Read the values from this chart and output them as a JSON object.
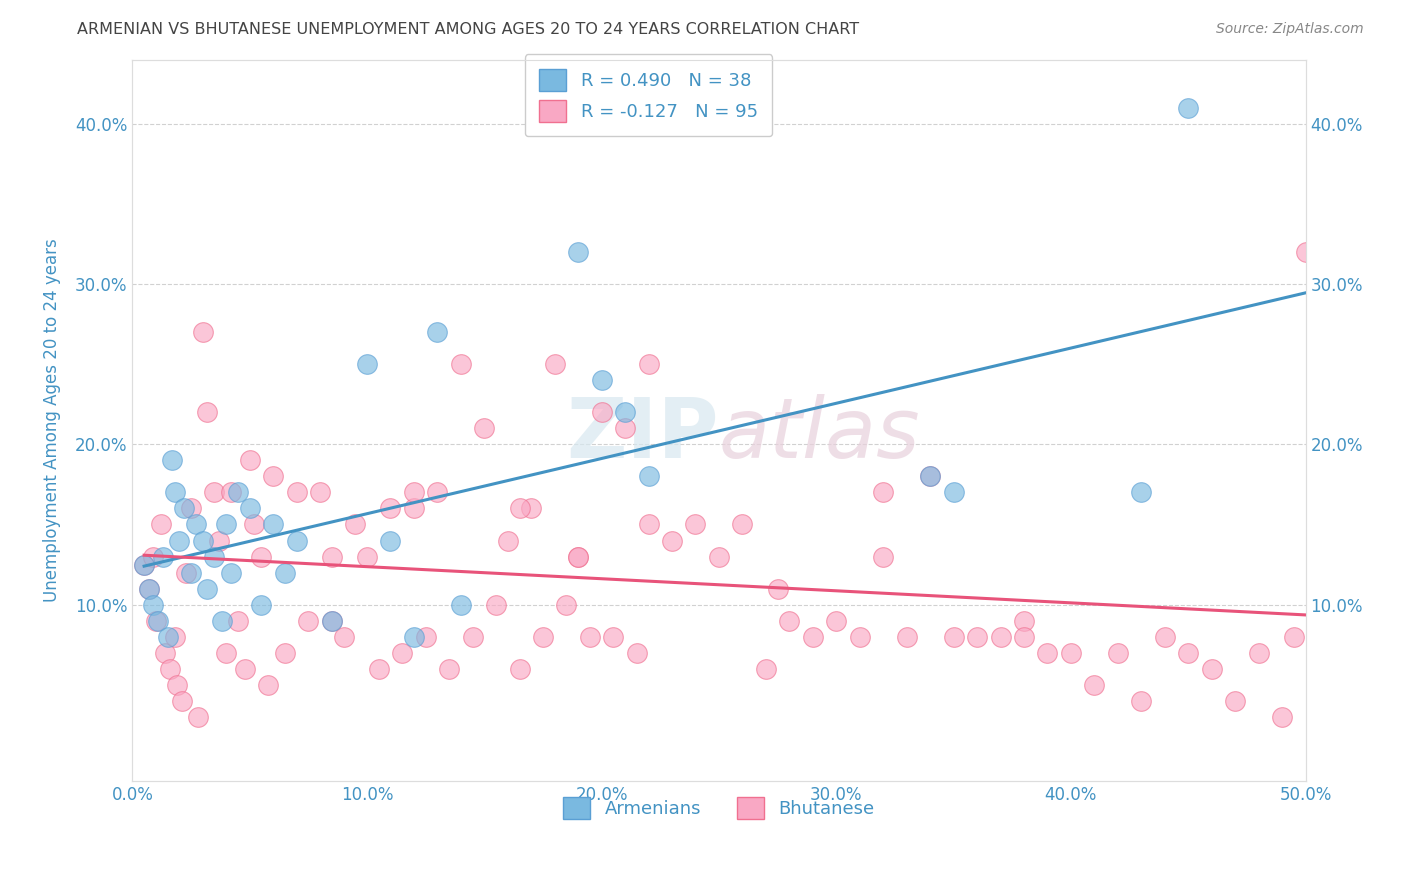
{
  "title": "ARMENIAN VS BHUTANESE UNEMPLOYMENT AMONG AGES 20 TO 24 YEARS CORRELATION CHART",
  "source": "Source: ZipAtlas.com",
  "ylabel": "Unemployment Among Ages 20 to 24 years",
  "xlim": [
    0.0,
    0.5
  ],
  "ylim": [
    -0.01,
    0.44
  ],
  "xticks": [
    0.0,
    0.1,
    0.2,
    0.3,
    0.4,
    0.5
  ],
  "yticks": [
    0.1,
    0.2,
    0.3,
    0.4
  ],
  "xticklabels": [
    "0.0%",
    "10.0%",
    "20.0%",
    "30.0%",
    "40.0%",
    "50.0%"
  ],
  "yticklabels": [
    "10.0%",
    "20.0%",
    "30.0%",
    "40.0%"
  ],
  "right_yticklabels": [
    "10.0%",
    "20.0%",
    "30.0%",
    "40.0%"
  ],
  "armenian_color": "#7ab9e0",
  "bhutanese_color": "#f9a8c4",
  "armenian_edge_color": "#5a9fd4",
  "bhutanese_edge_color": "#f07090",
  "armenian_line_color": "#4393c3",
  "bhutanese_line_color": "#e8537a",
  "R_armenian": 0.49,
  "N_armenian": 38,
  "R_bhutanese": -0.127,
  "N_bhutanese": 95,
  "armenian_x": [
    0.005,
    0.007,
    0.009,
    0.011,
    0.013,
    0.015,
    0.017,
    0.018,
    0.02,
    0.022,
    0.025,
    0.027,
    0.03,
    0.032,
    0.035,
    0.038,
    0.04,
    0.042,
    0.045,
    0.05,
    0.055,
    0.06,
    0.065,
    0.07,
    0.085,
    0.1,
    0.11,
    0.12,
    0.13,
    0.14,
    0.19,
    0.2,
    0.21,
    0.22,
    0.34,
    0.35,
    0.43,
    0.45
  ],
  "armenian_y": [
    0.125,
    0.11,
    0.1,
    0.09,
    0.13,
    0.08,
    0.19,
    0.17,
    0.14,
    0.16,
    0.12,
    0.15,
    0.14,
    0.11,
    0.13,
    0.09,
    0.15,
    0.12,
    0.17,
    0.16,
    0.1,
    0.15,
    0.12,
    0.14,
    0.09,
    0.25,
    0.14,
    0.08,
    0.27,
    0.1,
    0.32,
    0.24,
    0.22,
    0.18,
    0.18,
    0.17,
    0.17,
    0.41
  ],
  "bhutanese_x": [
    0.005,
    0.007,
    0.009,
    0.01,
    0.012,
    0.014,
    0.016,
    0.018,
    0.019,
    0.021,
    0.023,
    0.025,
    0.028,
    0.03,
    0.032,
    0.035,
    0.037,
    0.04,
    0.042,
    0.045,
    0.048,
    0.05,
    0.052,
    0.055,
    0.058,
    0.06,
    0.065,
    0.07,
    0.075,
    0.08,
    0.085,
    0.09,
    0.095,
    0.1,
    0.105,
    0.11,
    0.115,
    0.12,
    0.125,
    0.13,
    0.135,
    0.14,
    0.145,
    0.15,
    0.155,
    0.16,
    0.165,
    0.17,
    0.175,
    0.18,
    0.185,
    0.19,
    0.195,
    0.2,
    0.205,
    0.21,
    0.215,
    0.22,
    0.23,
    0.24,
    0.25,
    0.26,
    0.27,
    0.28,
    0.29,
    0.3,
    0.31,
    0.32,
    0.33,
    0.34,
    0.35,
    0.36,
    0.37,
    0.38,
    0.39,
    0.4,
    0.41,
    0.42,
    0.43,
    0.44,
    0.45,
    0.46,
    0.47,
    0.48,
    0.49,
    0.495,
    0.5,
    0.12,
    0.22,
    0.32,
    0.165,
    0.275,
    0.38,
    0.085,
    0.19
  ],
  "bhutanese_y": [
    0.125,
    0.11,
    0.13,
    0.09,
    0.15,
    0.07,
    0.06,
    0.08,
    0.05,
    0.04,
    0.12,
    0.16,
    0.03,
    0.27,
    0.22,
    0.17,
    0.14,
    0.07,
    0.17,
    0.09,
    0.06,
    0.19,
    0.15,
    0.13,
    0.05,
    0.18,
    0.07,
    0.17,
    0.09,
    0.17,
    0.13,
    0.08,
    0.15,
    0.13,
    0.06,
    0.16,
    0.07,
    0.16,
    0.08,
    0.17,
    0.06,
    0.25,
    0.08,
    0.21,
    0.1,
    0.14,
    0.06,
    0.16,
    0.08,
    0.25,
    0.1,
    0.13,
    0.08,
    0.22,
    0.08,
    0.21,
    0.07,
    0.15,
    0.14,
    0.15,
    0.13,
    0.15,
    0.06,
    0.09,
    0.08,
    0.09,
    0.08,
    0.17,
    0.08,
    0.18,
    0.08,
    0.08,
    0.08,
    0.09,
    0.07,
    0.07,
    0.05,
    0.07,
    0.04,
    0.08,
    0.07,
    0.06,
    0.04,
    0.07,
    0.03,
    0.08,
    0.32,
    0.17,
    0.25,
    0.13,
    0.16,
    0.11,
    0.08,
    0.09,
    0.13
  ],
  "watermark_line1": "ZIP",
  "watermark_line2": "atlas",
  "background_color": "#ffffff",
  "grid_color": "#cccccc",
  "title_color": "#444444",
  "tick_color": "#4393c3",
  "legend_text_color": "#4393c3"
}
